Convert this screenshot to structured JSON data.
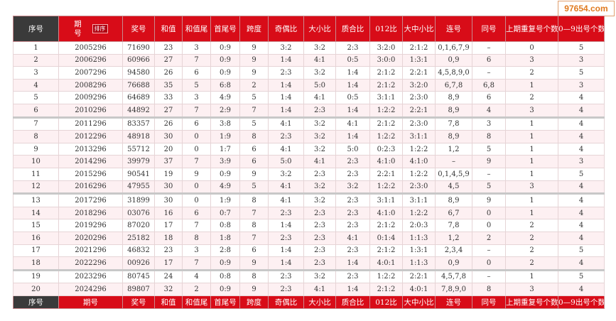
{
  "watermark": "97654.com",
  "table": {
    "header": [
      "序号",
      "期号",
      "奖号",
      "和值",
      "和值尾",
      "首尾号",
      "跨度",
      "奇偶比",
      "大小比",
      "质合比",
      "012比",
      "大中小比",
      "连号",
      "同号",
      "上期重复号个数",
      "0—9出号个数"
    ],
    "sort_label": "排序",
    "rows": [
      [
        "1",
        "2005296",
        "71690",
        "23",
        "3",
        "0:9",
        "9",
        "3:2",
        "3:2",
        "2:3",
        "3:2:0",
        "2:1:2",
        "0,1,6,7,9",
        "–",
        "0",
        "5"
      ],
      [
        "2",
        "2006296",
        "60966",
        "27",
        "7",
        "0:9",
        "9",
        "1:4",
        "4:1",
        "0:5",
        "3:0:0",
        "1:3:1",
        "0,9",
        "6",
        "3",
        "3"
      ],
      [
        "3",
        "2007296",
        "94580",
        "26",
        "6",
        "0:9",
        "9",
        "2:3",
        "3:2",
        "1:4",
        "2:1:2",
        "2:2:1",
        "4,5,8,9,0",
        "–",
        "2",
        "5"
      ],
      [
        "4",
        "2008296",
        "76688",
        "35",
        "5",
        "6:8",
        "2",
        "1:4",
        "5:0",
        "1:4",
        "2:1:2",
        "3:2:0",
        "6,7,8",
        "6,8",
        "1",
        "3"
      ],
      [
        "5",
        "2009296",
        "64689",
        "33",
        "3",
        "4:9",
        "5",
        "1:4",
        "4:1",
        "0:5",
        "3:1:1",
        "2:3:0",
        "8,9",
        "6",
        "2",
        "4"
      ],
      [
        "6",
        "2010296",
        "44892",
        "27",
        "7",
        "2:9",
        "7",
        "1:4",
        "2:3",
        "1:4",
        "1:2:2",
        "2:2:1",
        "8,9",
        "4",
        "3",
        "4"
      ],
      [
        "7",
        "2011296",
        "83357",
        "26",
        "6",
        "3:8",
        "5",
        "4:1",
        "3:2",
        "4:1",
        "2:1:2",
        "2:3:0",
        "7,8",
        "3",
        "1",
        "4"
      ],
      [
        "8",
        "2012296",
        "48918",
        "30",
        "0",
        "1:9",
        "8",
        "2:3",
        "3:2",
        "1:4",
        "1:2:2",
        "3:1:1",
        "8,9",
        "8",
        "1",
        "4"
      ],
      [
        "9",
        "2013296",
        "55712",
        "20",
        "0",
        "1:7",
        "6",
        "4:1",
        "3:2",
        "5:0",
        "0:2:3",
        "1:2:2",
        "1,2",
        "5",
        "1",
        "4"
      ],
      [
        "10",
        "2014296",
        "39979",
        "37",
        "7",
        "3:9",
        "6",
        "5:0",
        "4:1",
        "2:3",
        "4:1:0",
        "4:1:0",
        "–",
        "9",
        "1",
        "3"
      ],
      [
        "11",
        "2015296",
        "90541",
        "19",
        "9",
        "0:9",
        "9",
        "3:2",
        "2:3",
        "2:3",
        "2:2:1",
        "1:2:2",
        "0,1,4,5,9",
        "–",
        "1",
        "5"
      ],
      [
        "12",
        "2016296",
        "47955",
        "30",
        "0",
        "4:9",
        "5",
        "4:1",
        "3:2",
        "3:2",
        "1:2:2",
        "2:3:0",
        "4,5",
        "5",
        "3",
        "4"
      ],
      [
        "13",
        "2017296",
        "31899",
        "30",
        "0",
        "1:9",
        "8",
        "4:1",
        "3:2",
        "2:3",
        "3:1:1",
        "3:1:1",
        "8,9",
        "9",
        "1",
        "4"
      ],
      [
        "14",
        "2018296",
        "03076",
        "16",
        "6",
        "0:7",
        "7",
        "2:3",
        "2:3",
        "2:3",
        "4:1:0",
        "1:2:2",
        "6,7",
        "0",
        "1",
        "4"
      ],
      [
        "15",
        "2019296",
        "87020",
        "17",
        "7",
        "0:8",
        "8",
        "1:4",
        "2:3",
        "2:3",
        "2:1:2",
        "2:0:3",
        "7,8",
        "0",
        "2",
        "4"
      ],
      [
        "16",
        "2020296",
        "25182",
        "18",
        "8",
        "1:8",
        "7",
        "2:3",
        "2:3",
        "4:1",
        "0:1:4",
        "1:1:3",
        "1,2",
        "2",
        "2",
        "4"
      ],
      [
        "17",
        "2021296",
        "46832",
        "23",
        "3",
        "2:8",
        "6",
        "1:4",
        "2:3",
        "2:3",
        "2:1:2",
        "1:3:1",
        "2,3,4",
        "–",
        "2",
        "5"
      ],
      [
        "18",
        "2022296",
        "00926",
        "17",
        "7",
        "0:9",
        "9",
        "1:4",
        "2:3",
        "1:4",
        "4:0:1",
        "1:1:3",
        "0,9",
        "0",
        "2",
        "4"
      ],
      [
        "19",
        "2023296",
        "80745",
        "24",
        "4",
        "0:8",
        "8",
        "2:3",
        "3:2",
        "2:3",
        "1:2:2",
        "2:2:1",
        "4,5,7,8",
        "–",
        "1",
        "5"
      ],
      [
        "20",
        "2024296",
        "89807",
        "32",
        "2",
        "0:9",
        "9",
        "2:3",
        "4:1",
        "1:4",
        "2:1:2",
        "4:0:1",
        "7,8,9,0",
        "8",
        "3",
        "4"
      ]
    ]
  }
}
